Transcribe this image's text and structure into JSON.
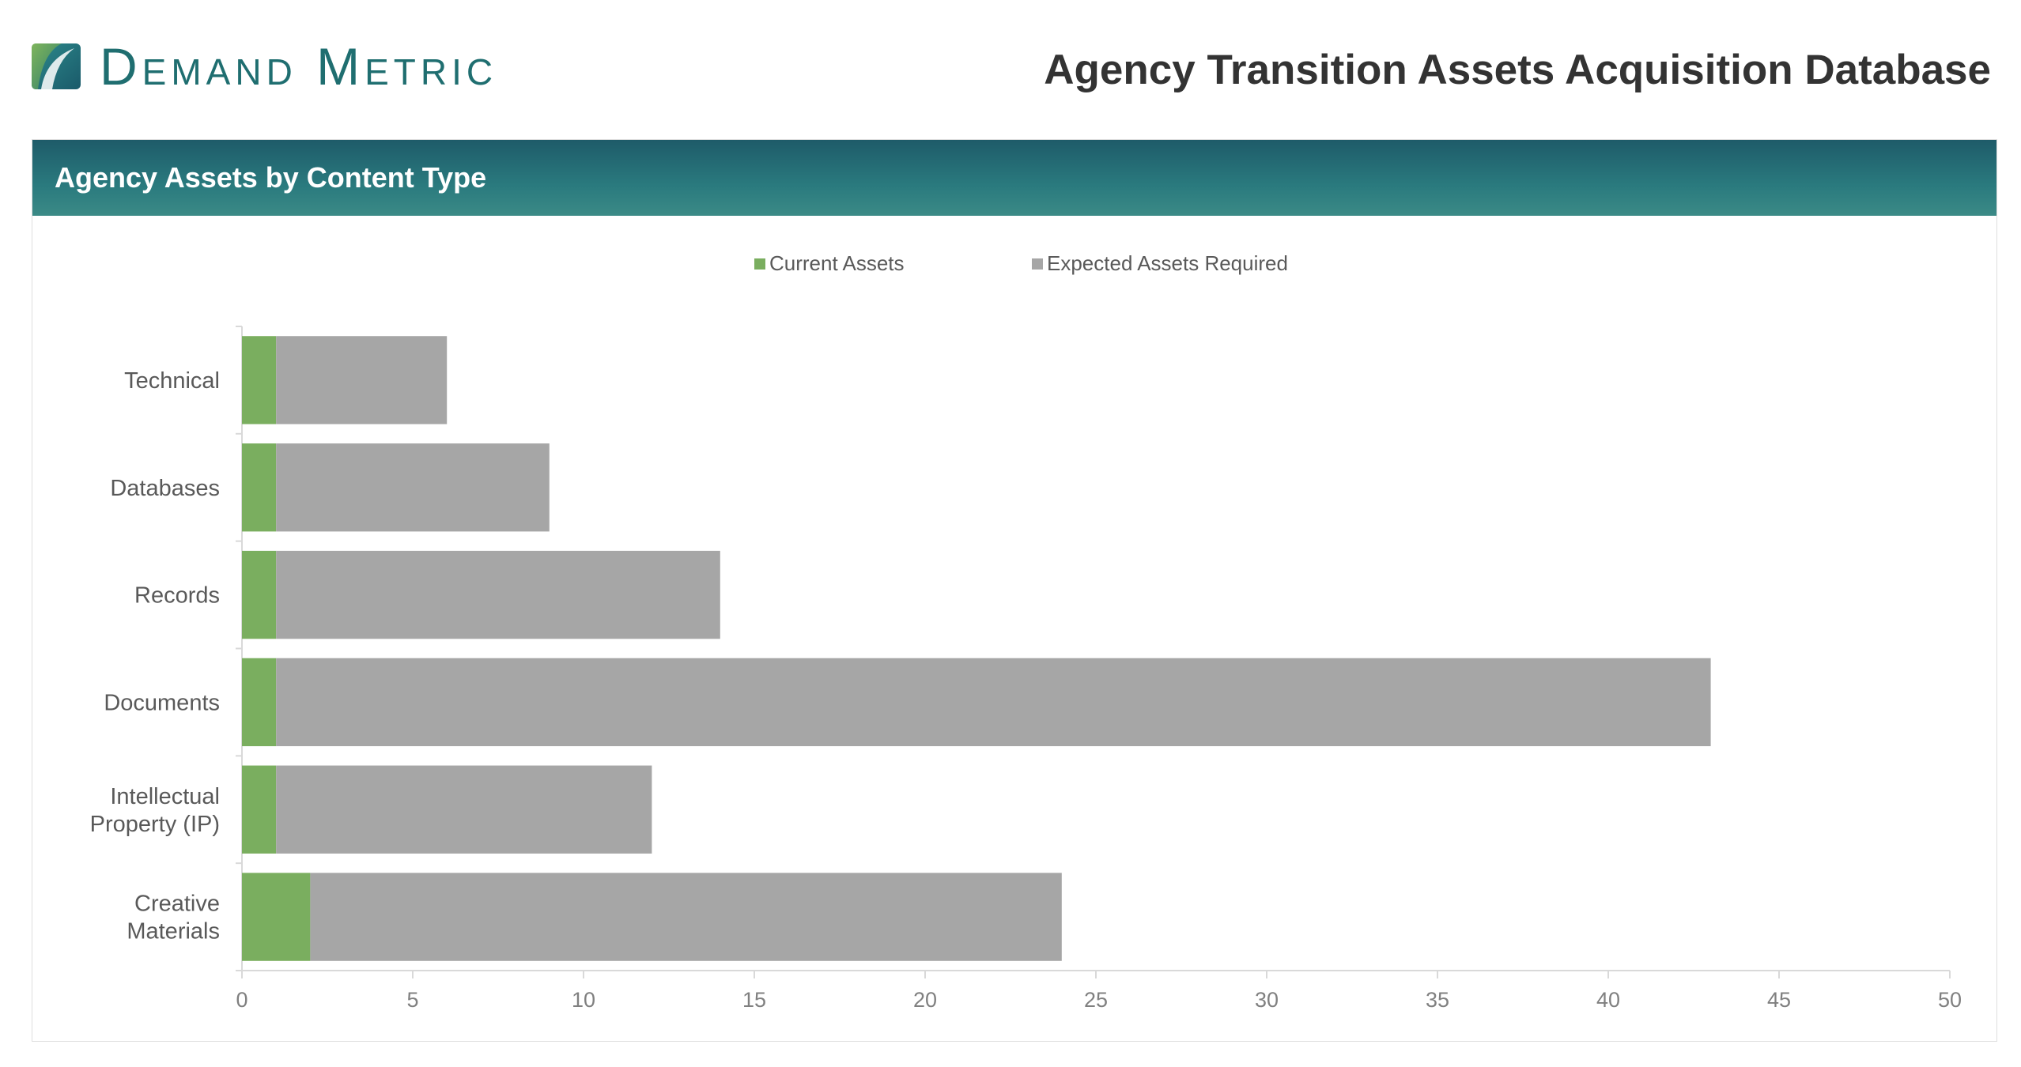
{
  "header": {
    "brand_name": "Demand Metric",
    "page_title": "Agency Transition Assets Acquisition Database"
  },
  "panel": {
    "title": "Agency Assets by Content Type"
  },
  "colors": {
    "current": "#7aae5f",
    "expected": "#a6a6a6",
    "brand": "#1f6e70",
    "header_dark": "#1e5b69",
    "header_light": "#3b8a86"
  },
  "chart_data": {
    "type": "bar",
    "orientation": "horizontal",
    "stacked": true,
    "categories": [
      [
        "Technical"
      ],
      [
        "Databases"
      ],
      [
        "Records"
      ],
      [
        "Documents"
      ],
      [
        "Intellectual",
        "Property (IP)"
      ],
      [
        "Creative",
        "Materials"
      ]
    ],
    "series": [
      {
        "name": "Current Assets",
        "color": "#7aae5f",
        "values": [
          1,
          1,
          1,
          1,
          1,
          2
        ]
      },
      {
        "name": "Expected Assets Required",
        "color": "#a6a6a6",
        "values": [
          5,
          8,
          13,
          42,
          11,
          22
        ]
      }
    ],
    "xlim": [
      0,
      50
    ],
    "xticks": [
      0,
      5,
      10,
      15,
      20,
      25,
      30,
      35,
      40,
      45,
      50
    ],
    "legend_position": "top",
    "grid": false
  }
}
